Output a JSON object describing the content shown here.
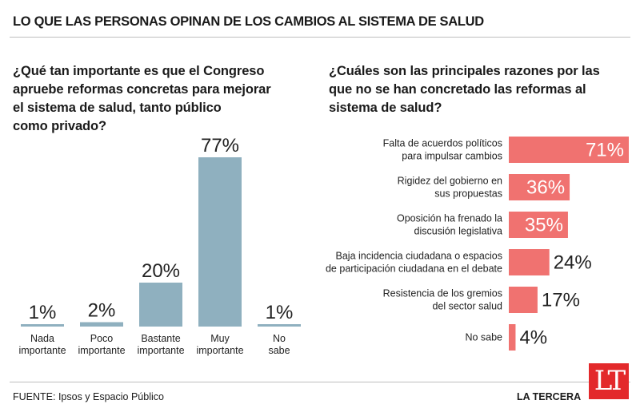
{
  "header": {
    "title": "LO QUE LAS PERSONAS OPINAN DE LOS CAMBIOS AL SISTEMA DE SALUD"
  },
  "footer": {
    "source": "FUENTE: Ipsos y Espacio Público",
    "brand": "LA TERCERA",
    "logo_text": "LT"
  },
  "colors": {
    "left_bars": "#8fb0bf",
    "right_bars": "#f07270",
    "logo": "#e3292b"
  },
  "chart_data": [
    {
      "type": "bar",
      "title": "¿Qué tan importante es que el Congreso\napruebe reformas concretas para mejorar\nel sistema de salud, tanto público\ncomo privado?",
      "categories": [
        "Nada\nimportante",
        "Poco\nimportante",
        "Bastante\nimportante",
        "Muy\nimportante",
        "No\nsabe"
      ],
      "values": [
        1,
        2,
        20,
        77,
        1
      ],
      "value_labels": [
        "1%",
        "2%",
        "20%",
        "77%",
        "1%"
      ],
      "ylim": [
        0,
        100
      ],
      "grid": false
    },
    {
      "type": "bar",
      "orientation": "horizontal",
      "title": "¿Cuáles son las principales razones por las\nque no se han concretado las reformas al\nsistema de salud?",
      "categories": [
        "Falta de acuerdos políticos\npara impulsar cambios",
        "Rigidez del gobierno en\nsus propuestas",
        "Oposición ha frenado la\ndiscusión legislativa",
        "Baja incidencia ciudadana o espacios\nde participación ciudadana en el debate",
        "Resistencia de los gremios\ndel sector salud",
        "No sabe"
      ],
      "values": [
        71,
        36,
        35,
        24,
        17,
        4
      ],
      "value_labels": [
        "71%",
        "36%",
        "35%",
        "24%",
        "17%",
        "4%"
      ],
      "xlim": [
        0,
        71
      ],
      "grid": false
    }
  ]
}
